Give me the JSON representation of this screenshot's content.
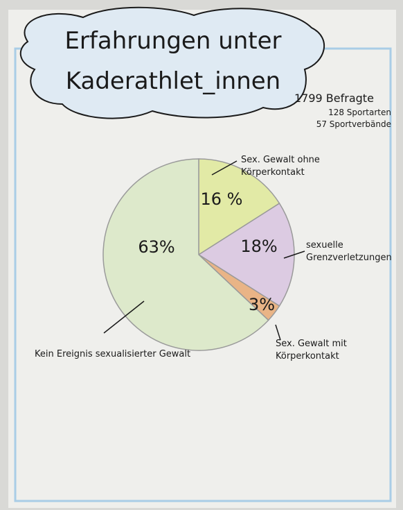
{
  "chart_data": {
    "type": "pie",
    "title": "Erfahrungen unter Kaderathlet_innen",
    "annotations": [
      "1799 Befragte",
      "128 Sportarten",
      "57 Sportverbände"
    ],
    "categories": [
      "Sex. Gewalt ohne Körperkontakt",
      "sexuelle Grenzverletzungen",
      "Sex. Gewalt mit Körperkontakt",
      "Kein Ereignis sexualisierter Gewalt"
    ],
    "values": [
      16,
      18,
      3,
      63
    ],
    "value_labels": [
      "16 %",
      "18%",
      "3%",
      "63%"
    ],
    "colors": [
      "#e2eaa6",
      "#dccbe2",
      "#e9b486",
      "#dde9cb"
    ]
  }
}
